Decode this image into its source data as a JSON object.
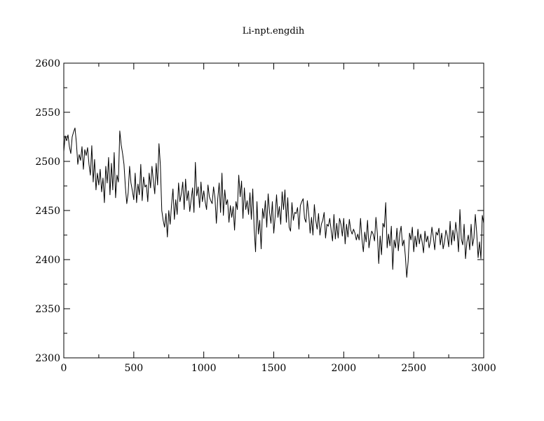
{
  "chart_data": {
    "type": "line",
    "title": "Li-npt.engdih",
    "xlabel": "",
    "ylabel": "",
    "xlim": [
      0,
      3000
    ],
    "ylim": [
      2300,
      2600
    ],
    "x_major_ticks": [
      0,
      500,
      1000,
      1500,
      2000,
      2500,
      3000
    ],
    "x_tick_labels": [
      "0",
      "500",
      "1000",
      "1500",
      "2000",
      "2500",
      "3000"
    ],
    "x_minor_step": 250,
    "y_major_ticks": [
      2300,
      2350,
      2400,
      2450,
      2500,
      2550,
      2600
    ],
    "y_tick_labels": [
      "2300",
      "2350",
      "2400",
      "2450",
      "2500",
      "2550",
      "2600"
    ],
    "y_minor_step": 25,
    "grid": false,
    "legend": "none",
    "series": [
      {
        "x": [
          0,
          10,
          20,
          30,
          40,
          50,
          60,
          70,
          80,
          90,
          100,
          110,
          120,
          130,
          140,
          150,
          160,
          170,
          180,
          190,
          200,
          210,
          220,
          230,
          240,
          250,
          260,
          270,
          280,
          290,
          300,
          310,
          320,
          330,
          340,
          350,
          360,
          370,
          380,
          390,
          400,
          410,
          420,
          430,
          440,
          450,
          460,
          470,
          480,
          490,
          500,
          510,
          520,
          530,
          540,
          550,
          560,
          570,
          580,
          590,
          600,
          610,
          620,
          630,
          640,
          650,
          660,
          670,
          680,
          690,
          700,
          710,
          720,
          730,
          740,
          750,
          760,
          770,
          780,
          790,
          800,
          810,
          820,
          830,
          840,
          850,
          860,
          870,
          880,
          890,
          900,
          910,
          920,
          930,
          940,
          950,
          960,
          970,
          980,
          990,
          1000,
          1010,
          1020,
          1030,
          1040,
          1050,
          1060,
          1070,
          1080,
          1090,
          1100,
          1110,
          1120,
          1130,
          1140,
          1150,
          1160,
          1170,
          1180,
          1190,
          1200,
          1210,
          1220,
          1230,
          1240,
          1250,
          1260,
          1270,
          1280,
          1290,
          1300,
          1310,
          1320,
          1330,
          1340,
          1350,
          1360,
          1370,
          1380,
          1390,
          1400,
          1410,
          1420,
          1430,
          1440,
          1450,
          1460,
          1470,
          1480,
          1490,
          1500,
          1510,
          1520,
          1530,
          1540,
          1550,
          1560,
          1570,
          1580,
          1590,
          1600,
          1610,
          1620,
          1630,
          1640,
          1650,
          1660,
          1670,
          1680,
          1690,
          1700,
          1710,
          1720,
          1730,
          1740,
          1750,
          1760,
          1770,
          1780,
          1790,
          1800,
          1810,
          1820,
          1830,
          1840,
          1850,
          1860,
          1870,
          1880,
          1890,
          1900,
          1910,
          1920,
          1930,
          1940,
          1950,
          1960,
          1970,
          1980,
          1990,
          2000,
          2010,
          2020,
          2030,
          2040,
          2050,
          2060,
          2070,
          2080,
          2090,
          2100,
          2110,
          2120,
          2130,
          2140,
          2150,
          2160,
          2170,
          2180,
          2190,
          2200,
          2210,
          2220,
          2230,
          2240,
          2250,
          2260,
          2270,
          2280,
          2290,
          2300,
          2310,
          2320,
          2330,
          2340,
          2350,
          2360,
          2370,
          2380,
          2390,
          2400,
          2410,
          2420,
          2430,
          2440,
          2450,
          2460,
          2470,
          2480,
          2490,
          2500,
          2510,
          2520,
          2530,
          2540,
          2550,
          2560,
          2570,
          2580,
          2590,
          2600,
          2610,
          2620,
          2630,
          2640,
          2650,
          2660,
          2670,
          2680,
          2690,
          2700,
          2710,
          2720,
          2730,
          2740,
          2750,
          2760,
          2770,
          2780,
          2790,
          2800,
          2810,
          2820,
          2830,
          2840,
          2850,
          2860,
          2870,
          2880,
          2890,
          2900,
          2910,
          2920,
          2930,
          2940,
          2950,
          2960,
          2970,
          2980,
          2990,
          3000
        ],
        "values": [
          2510,
          2526,
          2521,
          2527,
          2515,
          2508,
          2525,
          2530,
          2534,
          2519,
          2497,
          2507,
          2501,
          2515,
          2492,
          2512,
          2506,
          2514,
          2497,
          2486,
          2516,
          2479,
          2502,
          2471,
          2488,
          2476,
          2492,
          2469,
          2483,
          2458,
          2495,
          2478,
          2504,
          2466,
          2498,
          2471,
          2509,
          2463,
          2486,
          2479,
          2531,
          2517,
          2508,
          2497,
          2474,
          2457,
          2468,
          2495,
          2478,
          2470,
          2461,
          2488,
          2458,
          2477,
          2466,
          2497,
          2460,
          2484,
          2474,
          2476,
          2459,
          2488,
          2473,
          2495,
          2480,
          2467,
          2498,
          2476,
          2518,
          2496,
          2450,
          2440,
          2433,
          2447,
          2423,
          2450,
          2436,
          2456,
          2472,
          2441,
          2461,
          2446,
          2478,
          2459,
          2467,
          2479,
          2451,
          2482,
          2460,
          2470,
          2449,
          2461,
          2473,
          2448,
          2499,
          2465,
          2474,
          2453,
          2479,
          2459,
          2470,
          2459,
          2451,
          2476,
          2464,
          2460,
          2457,
          2474,
          2463,
          2437,
          2462,
          2478,
          2448,
          2488,
          2445,
          2471,
          2456,
          2461,
          2438,
          2455,
          2443,
          2454,
          2430,
          2459,
          2451,
          2486,
          2464,
          2480,
          2442,
          2473,
          2451,
          2460,
          2446,
          2468,
          2441,
          2472,
          2432,
          2408,
          2459,
          2426,
          2440,
          2411,
          2452,
          2442,
          2460,
          2433,
          2467,
          2448,
          2437,
          2459,
          2427,
          2444,
          2466,
          2443,
          2454,
          2436,
          2469,
          2451,
          2471,
          2438,
          2463,
          2433,
          2429,
          2458,
          2440,
          2448,
          2447,
          2453,
          2431,
          2455,
          2459,
          2462,
          2442,
          2438,
          2460,
          2446,
          2427,
          2443,
          2425,
          2456,
          2440,
          2431,
          2447,
          2425,
          2436,
          2440,
          2448,
          2422,
          2436,
          2434,
          2442,
          2430,
          2419,
          2446,
          2421,
          2437,
          2422,
          2442,
          2436,
          2424,
          2442,
          2416,
          2436,
          2423,
          2441,
          2430,
          2426,
          2431,
          2427,
          2420,
          2426,
          2420,
          2442,
          2421,
          2408,
          2428,
          2418,
          2440,
          2412,
          2422,
          2429,
          2426,
          2419,
          2443,
          2427,
          2396,
          2424,
          2405,
          2437,
          2433,
          2458,
          2412,
          2426,
          2414,
          2434,
          2390,
          2420,
          2412,
          2432,
          2409,
          2426,
          2434,
          2414,
          2420,
          2404,
          2382,
          2398,
          2427,
          2420,
          2433,
          2408,
          2424,
          2413,
          2431,
          2416,
          2426,
          2418,
          2407,
          2429,
          2418,
          2424,
          2412,
          2419,
          2433,
          2423,
          2410,
          2428,
          2425,
          2432,
          2415,
          2427,
          2411,
          2418,
          2430,
          2424,
          2413,
          2439,
          2415,
          2430,
          2419,
          2438,
          2427,
          2408,
          2451,
          2421,
          2415,
          2436,
          2401,
          2418,
          2425,
          2410,
          2436,
          2414,
          2422,
          2446,
          2427,
          2402,
          2418,
          2401,
          2445,
          2437
        ]
      }
    ]
  }
}
